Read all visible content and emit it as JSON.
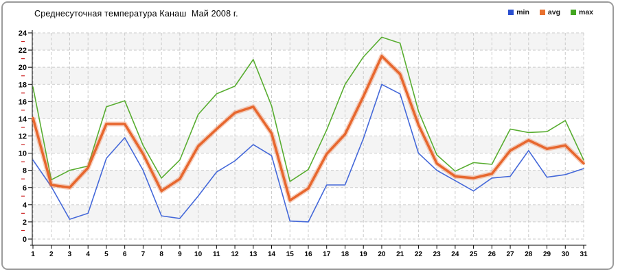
{
  "header": {
    "title": "Среднесуточная температура Канаш  Май 2008 г."
  },
  "legend": {
    "position": "top-right",
    "items": [
      {
        "id": "min",
        "label": "min",
        "color": "#2a4fd0"
      },
      {
        "id": "avg",
        "label": "avg",
        "color": "#e8712f"
      },
      {
        "id": "max",
        "label": "max",
        "color": "#43a621"
      }
    ]
  },
  "chart_data": {
    "type": "line",
    "title": "Среднесуточная температура Канаш  Май 2008 г.",
    "xlabel": "",
    "ylabel": "",
    "x": [
      1,
      2,
      3,
      4,
      5,
      6,
      7,
      8,
      9,
      10,
      11,
      12,
      13,
      14,
      15,
      16,
      17,
      18,
      19,
      20,
      21,
      22,
      23,
      24,
      25,
      26,
      27,
      28,
      29,
      30,
      31
    ],
    "series": [
      {
        "name": "min",
        "color": "#4468d9",
        "width": 1.6,
        "halo": false,
        "values": [
          9.2,
          6.1,
          2.3,
          3.0,
          9.4,
          11.8,
          8.0,
          2.7,
          2.4,
          5.0,
          7.8,
          9.1,
          11.0,
          9.7,
          2.1,
          2.0,
          6.3,
          6.3,
          11.7,
          18.0,
          16.9,
          10.0,
          8.0,
          6.8,
          5.6,
          7.1,
          7.3,
          10.3,
          7.2,
          7.5,
          8.2
        ]
      },
      {
        "name": "avg",
        "color": "#e7672e",
        "width": 3.5,
        "halo": true,
        "values": [
          14.1,
          6.3,
          6.0,
          8.3,
          13.4,
          13.4,
          9.9,
          5.6,
          7.0,
          10.8,
          12.8,
          14.7,
          15.4,
          12.3,
          4.5,
          5.9,
          9.9,
          12.2,
          16.6,
          21.3,
          19.2,
          13.3,
          8.8,
          7.3,
          7.1,
          7.6,
          10.3,
          11.5,
          10.5,
          10.9,
          8.8
        ]
      },
      {
        "name": "max",
        "color": "#58ad30",
        "width": 1.6,
        "halo": false,
        "values": [
          17.7,
          6.9,
          8.0,
          8.5,
          15.4,
          16.1,
          10.9,
          7.1,
          9.2,
          14.5,
          16.9,
          17.8,
          20.9,
          15.5,
          6.7,
          8.1,
          12.7,
          18.0,
          21.2,
          23.5,
          22.8,
          14.9,
          9.8,
          7.9,
          8.9,
          8.7,
          12.8,
          12.4,
          12.5,
          13.8,
          9.2
        ]
      }
    ],
    "ylim": [
      0,
      24
    ],
    "ytick_step": 2,
    "ytick_labels": [
      "0",
      "2",
      "4",
      "6",
      "8",
      "10",
      "12",
      "14",
      "16",
      "18",
      "20",
      "22",
      "24"
    ],
    "grid": "dashed",
    "grid_color": "#cbcbcb",
    "band_colors": [
      "#f4f4f4",
      "#ffffff"
    ],
    "axis_color": "#000000",
    "minor_tick_color": "#cc2222",
    "legend_position": "top-right"
  }
}
